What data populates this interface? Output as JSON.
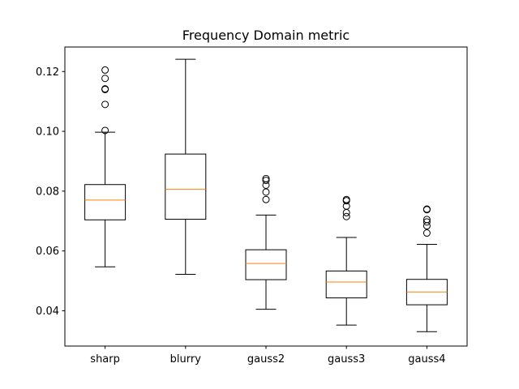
{
  "chart_data": {
    "type": "box",
    "title": "Frequency Domain metric",
    "xlabel": "",
    "ylabel": "",
    "ylim": [
      0.0282,
      0.1282
    ],
    "yticks": [
      0.04,
      0.06,
      0.08,
      0.1,
      0.12
    ],
    "ytick_labels": [
      "0.04",
      "0.06",
      "0.08",
      "0.10",
      "0.12"
    ],
    "grid": false,
    "median_color": "#ff7f0e",
    "box_color": "#000000",
    "categories": [
      "sharp",
      "blurry",
      "gauss2",
      "gauss3",
      "gauss4"
    ],
    "boxes": [
      {
        "category": "sharp",
        "whisker_low": 0.0547,
        "q1": 0.0704,
        "median": 0.077,
        "q3": 0.0822,
        "whisker_high": 0.0997,
        "outliers": [
          0.1003,
          0.109,
          0.114,
          0.1142,
          0.1177,
          0.1205
        ]
      },
      {
        "category": "blurry",
        "whisker_low": 0.0522,
        "q1": 0.0706,
        "median": 0.0806,
        "q3": 0.0924,
        "whisker_high": 0.1241,
        "outliers": []
      },
      {
        "category": "gauss2",
        "whisker_low": 0.0405,
        "q1": 0.0504,
        "median": 0.0558,
        "q3": 0.0604,
        "whisker_high": 0.072,
        "outliers": [
          0.0772,
          0.0797,
          0.082,
          0.0836,
          0.0842
        ]
      },
      {
        "category": "gauss3",
        "whisker_low": 0.0352,
        "q1": 0.0443,
        "median": 0.0496,
        "q3": 0.0533,
        "whisker_high": 0.0645,
        "outliers": [
          0.0715,
          0.0728,
          0.075,
          0.0768,
          0.0772
        ]
      },
      {
        "category": "gauss4",
        "whisker_low": 0.033,
        "q1": 0.042,
        "median": 0.0463,
        "q3": 0.0505,
        "whisker_high": 0.0622,
        "outliers": [
          0.066,
          0.0684,
          0.0697,
          0.0705,
          0.0738,
          0.074
        ]
      }
    ]
  }
}
